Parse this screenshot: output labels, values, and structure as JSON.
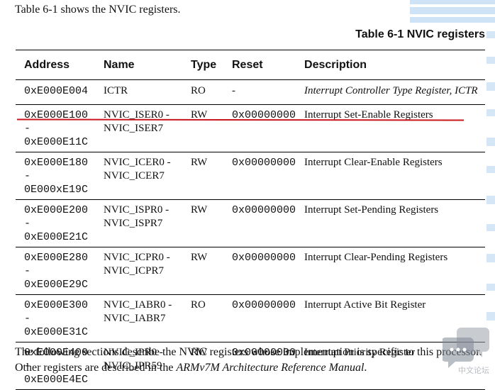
{
  "intro_text": "Table 6-1 shows the NVIC registers.",
  "caption": "Table 6-1 NVIC registers",
  "table": {
    "headers": [
      "Address",
      "Name",
      "Type",
      "Reset",
      "Description"
    ],
    "rows": [
      {
        "addr1": "0xE000E004",
        "addr2": "",
        "name1": "ICTR",
        "name2": "",
        "type": "RO",
        "reset": "-",
        "desc": "Interrupt Controller Type Register, ICTR"
      },
      {
        "addr1": "0xE000E100 -",
        "addr2": "0xE000E11C",
        "name1": "NVIC_ISER0 -",
        "name2": "NVIC_ISER7",
        "type": "RW",
        "reset": "0x00000000",
        "desc": "Interrupt Set-Enable Registers"
      },
      {
        "addr1": "0xE000E180 -",
        "addr2": "0E000xE19C",
        "name1": "NVIC_ICER0 -",
        "name2": "NVIC_ICER7",
        "type": "RW",
        "reset": "0x00000000",
        "desc": "Interrupt Clear-Enable Registers"
      },
      {
        "addr1": "0xE000E200 -",
        "addr2": "0xE000E21C",
        "name1": "NVIC_ISPR0 -",
        "name2": "NVIC_ISPR7",
        "type": "RW",
        "reset": "0x00000000",
        "desc": "Interrupt Set-Pending Registers"
      },
      {
        "addr1": "0xE000E280 -",
        "addr2": "0xE000E29C",
        "name1": "NVIC_ICPR0 -",
        "name2": "NVIC_ICPR7",
        "type": "RW",
        "reset": "0x00000000",
        "desc": "Interrupt Clear-Pending Registers"
      },
      {
        "addr1": "0xE000E300 -",
        "addr2": "0xE000E31C",
        "name1": "NVIC_IABR0 -",
        "name2": "NVIC_IABR7",
        "type": "RO",
        "reset": "0x00000000",
        "desc": "Interrupt Active Bit Register"
      },
      {
        "addr1": "0xE000E400 -",
        "addr2": "0xE000E4EC",
        "name1": "NVIC_IPR0 -",
        "name2": "NVIC_IPR59",
        "type": "RW",
        "reset": "0x00000000",
        "desc": "Interrupt Priority Register"
      }
    ]
  },
  "footer": {
    "text_part1": "The following sections describe the NVIC registers whose implementation is specific to this processor. Other registers are described in the ",
    "text_italic": "ARMv7M Architecture Reference Manual",
    "text_part2": "."
  },
  "watermark": {
    "text": "中文论坛",
    "icon": "chat-bubble-icon"
  },
  "colors": {
    "highlight_line": "#c8161d",
    "decor_blue": "#cfe3f6"
  }
}
